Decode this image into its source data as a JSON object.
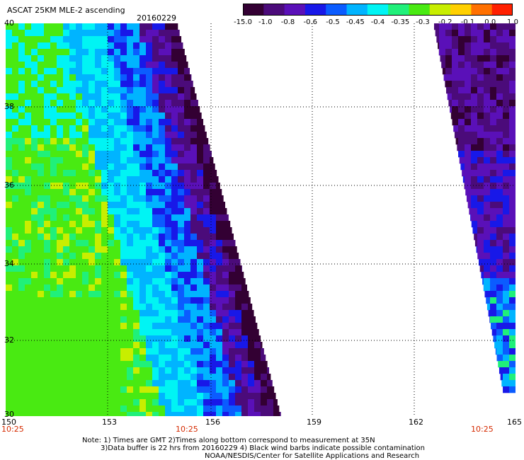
{
  "header": {
    "product": "ASCAT 25KM MLE-2 ascending",
    "date": "20160229"
  },
  "colorbar": {
    "labels": [
      "-15.0",
      "-1.0",
      "-0.8",
      "-0.6",
      "-0.5",
      "-0.45",
      "-0.4",
      "-0.35",
      "-0.3",
      "-0.2",
      "-0.1",
      "0.0",
      "1.0"
    ],
    "colors": [
      "#330033",
      "#4b0b7a",
      "#5a10b8",
      "#1818e8",
      "#0b5cff",
      "#00b4ff",
      "#00f4f4",
      "#20f07a",
      "#49ea12",
      "#c8ee00",
      "#ffd000",
      "#ff7000",
      "#ff2000"
    ]
  },
  "map": {
    "lon_labels": [
      "150",
      "153",
      "156",
      "159",
      "162",
      "165"
    ],
    "lat_labels": [
      "40",
      "38",
      "36",
      "34",
      "32",
      "30"
    ],
    "time_labels": [
      "10:25",
      "10:25",
      "10:25"
    ]
  },
  "notes": {
    "line1": "Note: 1) Times are GMT 2)Times along bottom correspond to measurement at 35N",
    "line2": "3)Data buffer is 22 hrs from 20160229 4) Black wind barbs indicate possible contamination",
    "line3": "NOAA/NESDIS/Center for Satellite Applications and Research"
  }
}
